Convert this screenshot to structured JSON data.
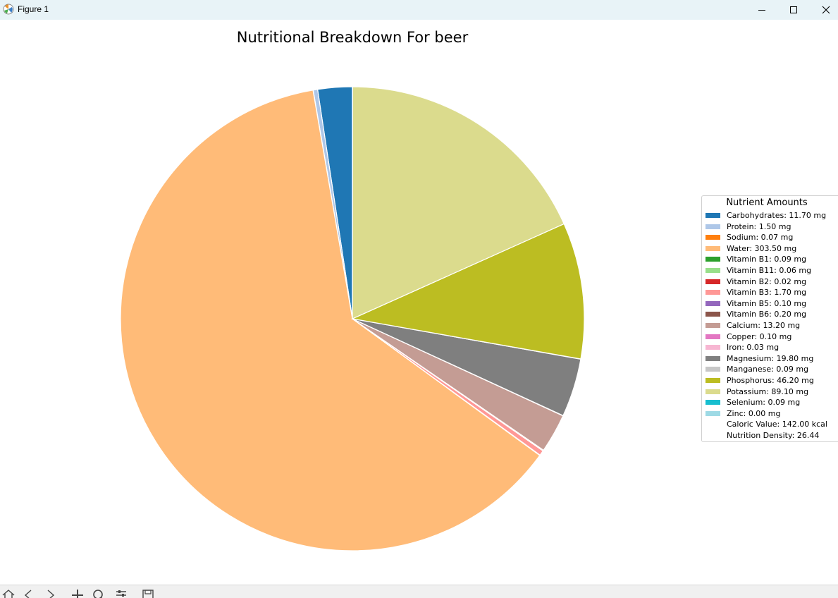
{
  "window": {
    "title": "Figure 1",
    "controls": [
      "minimize-icon",
      "maximize-icon",
      "close-icon"
    ]
  },
  "toolbar": {
    "buttons": [
      "home-icon",
      "back-icon",
      "forward-icon",
      "pan-icon",
      "zoom-icon",
      "configure-icon",
      "save-icon"
    ]
  },
  "chart_data": {
    "type": "pie",
    "title": "Nutritional Breakdown For beer",
    "legend_title": "Nutrient Amounts",
    "legend_placement": "center-right",
    "start_angle_deg": 90,
    "direction": "counterclockwise",
    "slices": [
      {
        "label": "Carbohydrates",
        "value": 11.7,
        "unit": "mg",
        "color": "#1f77b4"
      },
      {
        "label": "Protein",
        "value": 1.5,
        "unit": "mg",
        "color": "#aec7e8"
      },
      {
        "label": "Sodium",
        "value": 0.07,
        "unit": "mg",
        "color": "#ff7f0e"
      },
      {
        "label": "Water",
        "value": 303.5,
        "unit": "mg",
        "color": "#ffbb78"
      },
      {
        "label": "Vitamin B1",
        "value": 0.09,
        "unit": "mg",
        "color": "#2ca02c"
      },
      {
        "label": "Vitamin B11",
        "value": 0.06,
        "unit": "mg",
        "color": "#98df8a"
      },
      {
        "label": "Vitamin B2",
        "value": 0.02,
        "unit": "mg",
        "color": "#d62728"
      },
      {
        "label": "Vitamin B3",
        "value": 1.7,
        "unit": "mg",
        "color": "#ff9896"
      },
      {
        "label": "Vitamin B5",
        "value": 0.1,
        "unit": "mg",
        "color": "#9467bd"
      },
      {
        "label": "Vitamin B6",
        "value": 0.2,
        "unit": "mg",
        "color": "#8c564b"
      },
      {
        "label": "Calcium",
        "value": 13.2,
        "unit": "mg",
        "color": "#c49c94"
      },
      {
        "label": "Copper",
        "value": 0.1,
        "unit": "mg",
        "color": "#e377c2"
      },
      {
        "label": "Iron",
        "value": 0.03,
        "unit": "mg",
        "color": "#f7b6d2"
      },
      {
        "label": "Magnesium",
        "value": 19.8,
        "unit": "mg",
        "color": "#7f7f7f"
      },
      {
        "label": "Manganese",
        "value": 0.09,
        "unit": "mg",
        "color": "#c7c7c7"
      },
      {
        "label": "Phosphorus",
        "value": 46.2,
        "unit": "mg",
        "color": "#bcbd22"
      },
      {
        "label": "Potassium",
        "value": 89.1,
        "unit": "mg",
        "color": "#dbdb8d"
      },
      {
        "label": "Selenium",
        "value": 0.09,
        "unit": "mg",
        "color": "#17becf"
      },
      {
        "label": "Zinc",
        "value": 0.0,
        "unit": "mg",
        "color": "#9edae5"
      }
    ],
    "legend_labels": [
      "Carbohydrates: 11.70 mg",
      "Protein: 1.50 mg",
      "Sodium: 0.07 mg",
      "Water: 303.50 mg",
      "Vitamin B1: 0.09 mg",
      "Vitamin B11: 0.06 mg",
      "Vitamin B2: 0.02 mg",
      "Vitamin B3: 1.70 mg",
      "Vitamin B5: 0.10 mg",
      "Vitamin B6: 0.20 mg",
      "Calcium: 13.20 mg",
      "Copper: 0.10 mg",
      "Iron: 0.03 mg",
      "Magnesium: 19.80 mg",
      "Manganese: 0.09 mg",
      "Phosphorus: 46.20 mg",
      "Potassium: 89.10 mg",
      "Selenium: 0.09 mg",
      "Zinc: 0.00 mg"
    ],
    "extra_legend_lines": [
      "Caloric Value: 142.00 kcal",
      "Nutrition Density: 26.44"
    ]
  }
}
